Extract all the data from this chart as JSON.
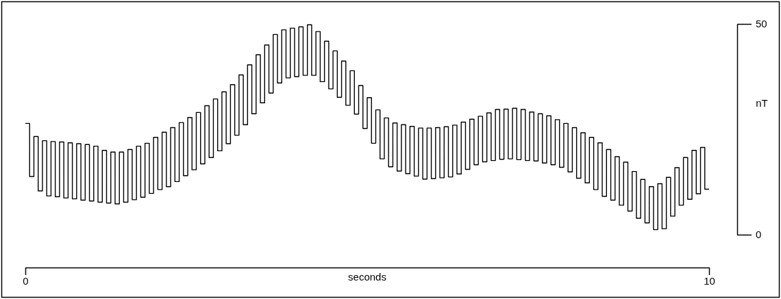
{
  "chart_data": {
    "type": "step",
    "xlabel": "seconds",
    "ylabel": "nT",
    "xlim": [
      0,
      10
    ],
    "ylim": [
      0,
      50
    ],
    "xticks": [
      0,
      10
    ],
    "yticks": [
      0,
      50
    ],
    "x": [
      0,
      0.0625,
      0.125,
      0.1875,
      0.25,
      0.3125,
      0.375,
      0.4375,
      0.5,
      0.5625,
      0.625,
      0.6875,
      0.75,
      0.8125,
      0.875,
      0.9375,
      1,
      1.0625,
      1.125,
      1.1875,
      1.25,
      1.3125,
      1.375,
      1.4375,
      1.5,
      1.5625,
      1.625,
      1.6875,
      1.75,
      1.8125,
      1.875,
      1.9375,
      2,
      2.0625,
      2.125,
      2.1875,
      2.25,
      2.3125,
      2.375,
      2.4375,
      2.5,
      2.5625,
      2.625,
      2.6875,
      2.75,
      2.8125,
      2.875,
      2.9375,
      3,
      3.0625,
      3.125,
      3.1875,
      3.25,
      3.3125,
      3.375,
      3.4375,
      3.5,
      3.5625,
      3.625,
      3.6875,
      3.75,
      3.8125,
      3.875,
      3.9375,
      4,
      4.0625,
      4.125,
      4.1875,
      4.25,
      4.3125,
      4.375,
      4.4375,
      4.5,
      4.5625,
      4.625,
      4.6875,
      4.75,
      4.8125,
      4.875,
      4.9375,
      5,
      5.0625,
      5.125,
      5.1875,
      5.25,
      5.3125,
      5.375,
      5.4375,
      5.5,
      5.5625,
      5.625,
      5.6875,
      5.75,
      5.8125,
      5.875,
      5.9375,
      6,
      6.0625,
      6.125,
      6.1875,
      6.25,
      6.3125,
      6.375,
      6.4375,
      6.5,
      6.5625,
      6.625,
      6.6875,
      6.75,
      6.8125,
      6.875,
      6.9375,
      7,
      7.0625,
      7.125,
      7.1875,
      7.25,
      7.3125,
      7.375,
      7.4375,
      7.5,
      7.5625,
      7.625,
      7.6875,
      7.75,
      7.8125,
      7.875,
      7.9375,
      8,
      8.0625,
      8.125,
      8.1875,
      8.25,
      8.3125,
      8.375,
      8.4375,
      8.5,
      8.5625,
      8.625,
      8.6875,
      8.75,
      8.8125,
      8.875,
      8.9375,
      9,
      9.0625,
      9.125,
      9.1875,
      9.25,
      9.3125,
      9.375,
      9.4375,
      9.5,
      9.5625,
      9.625,
      9.6875,
      9.75,
      9.8125,
      9.875,
      9.9375,
      10
    ],
    "series": [
      {
        "color": "#000000",
        "values": [
          26.4,
          13.8,
          23.3,
          10.4,
          22.3,
          9.2,
          22.1,
          9.0,
          22.0,
          8.7,
          21.8,
          8.5,
          21.6,
          8.2,
          21.4,
          8.0,
          21.0,
          7.7,
          20.0,
          7.5,
          19.6,
          7.3,
          19.6,
          7.7,
          20.2,
          8.3,
          21.0,
          8.9,
          21.7,
          9.8,
          23.1,
          10.7,
          24.3,
          11.4,
          25.4,
          12.6,
          26.6,
          14.0,
          27.8,
          15.4,
          29.0,
          16.8,
          30.6,
          18.3,
          32.2,
          19.9,
          33.9,
          21.6,
          35.6,
          23.6,
          37.9,
          26.1,
          40.3,
          28.7,
          42.7,
          31.3,
          45.0,
          33.6,
          47.5,
          36.0,
          48.6,
          37.2,
          49.0,
          37.5,
          49.3,
          37.8,
          49.8,
          37.8,
          48.2,
          36.3,
          45.9,
          34.6,
          43.6,
          32.6,
          41.2,
          30.7,
          38.9,
          28.6,
          35.4,
          25.2,
          32.5,
          21.7,
          29.6,
          18.0,
          27.7,
          16.1,
          26.5,
          15.1,
          26.1,
          14.5,
          25.7,
          13.9,
          25.3,
          13.2,
          25.3,
          13.3,
          25.4,
          13.5,
          25.6,
          13.7,
          26.0,
          14.4,
          26.7,
          15.5,
          27.4,
          16.6,
          28.1,
          17.3,
          28.9,
          17.6,
          29.7,
          17.9,
          29.8,
          18.0,
          30.0,
          17.8,
          29.7,
          17.6,
          29.1,
          17.5,
          28.7,
          17.0,
          28.2,
          16.6,
          27.3,
          16.0,
          26.4,
          14.9,
          25.4,
          13.4,
          24.2,
          12.3,
          23.1,
          10.7,
          21.8,
          9.1,
          20.2,
          8.2,
          18.5,
          7.0,
          17.2,
          5.6,
          15.0,
          3.9,
          13.1,
          2.8,
          11.4,
          1.2,
          12.1,
          1.4,
          13.6,
          4.4,
          15.9,
          7.0,
          18.3,
          8.4,
          20.0,
          9.7,
          20.7,
          10.8,
          10.8
        ]
      }
    ]
  }
}
